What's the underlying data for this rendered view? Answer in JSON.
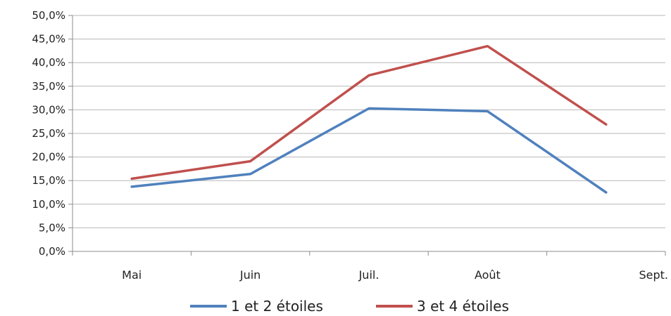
{
  "chart_data": {
    "type": "line",
    "categories": [
      "Mai",
      "Juin",
      "Juil.",
      "Août",
      "Sept."
    ],
    "y_tick_labels": [
      "0,0%",
      "5,0%",
      "10,0%",
      "15,0%",
      "20,0%",
      "25,0%",
      "30,0%",
      "35,0%",
      "40,0%",
      "45,0%",
      "50,0%"
    ],
    "ylim": [
      0,
      50
    ],
    "grid": true,
    "legend_position": "bottom",
    "series": [
      {
        "name": "1 et 2 étoiles",
        "color": "#4f81bd",
        "values": [
          13.7,
          16.4,
          30.3,
          29.7,
          12.5
        ]
      },
      {
        "name": "3 et 4 étoiles",
        "color": "#c0504d",
        "values": [
          15.4,
          19.1,
          37.3,
          43.5,
          26.9
        ]
      }
    ]
  }
}
